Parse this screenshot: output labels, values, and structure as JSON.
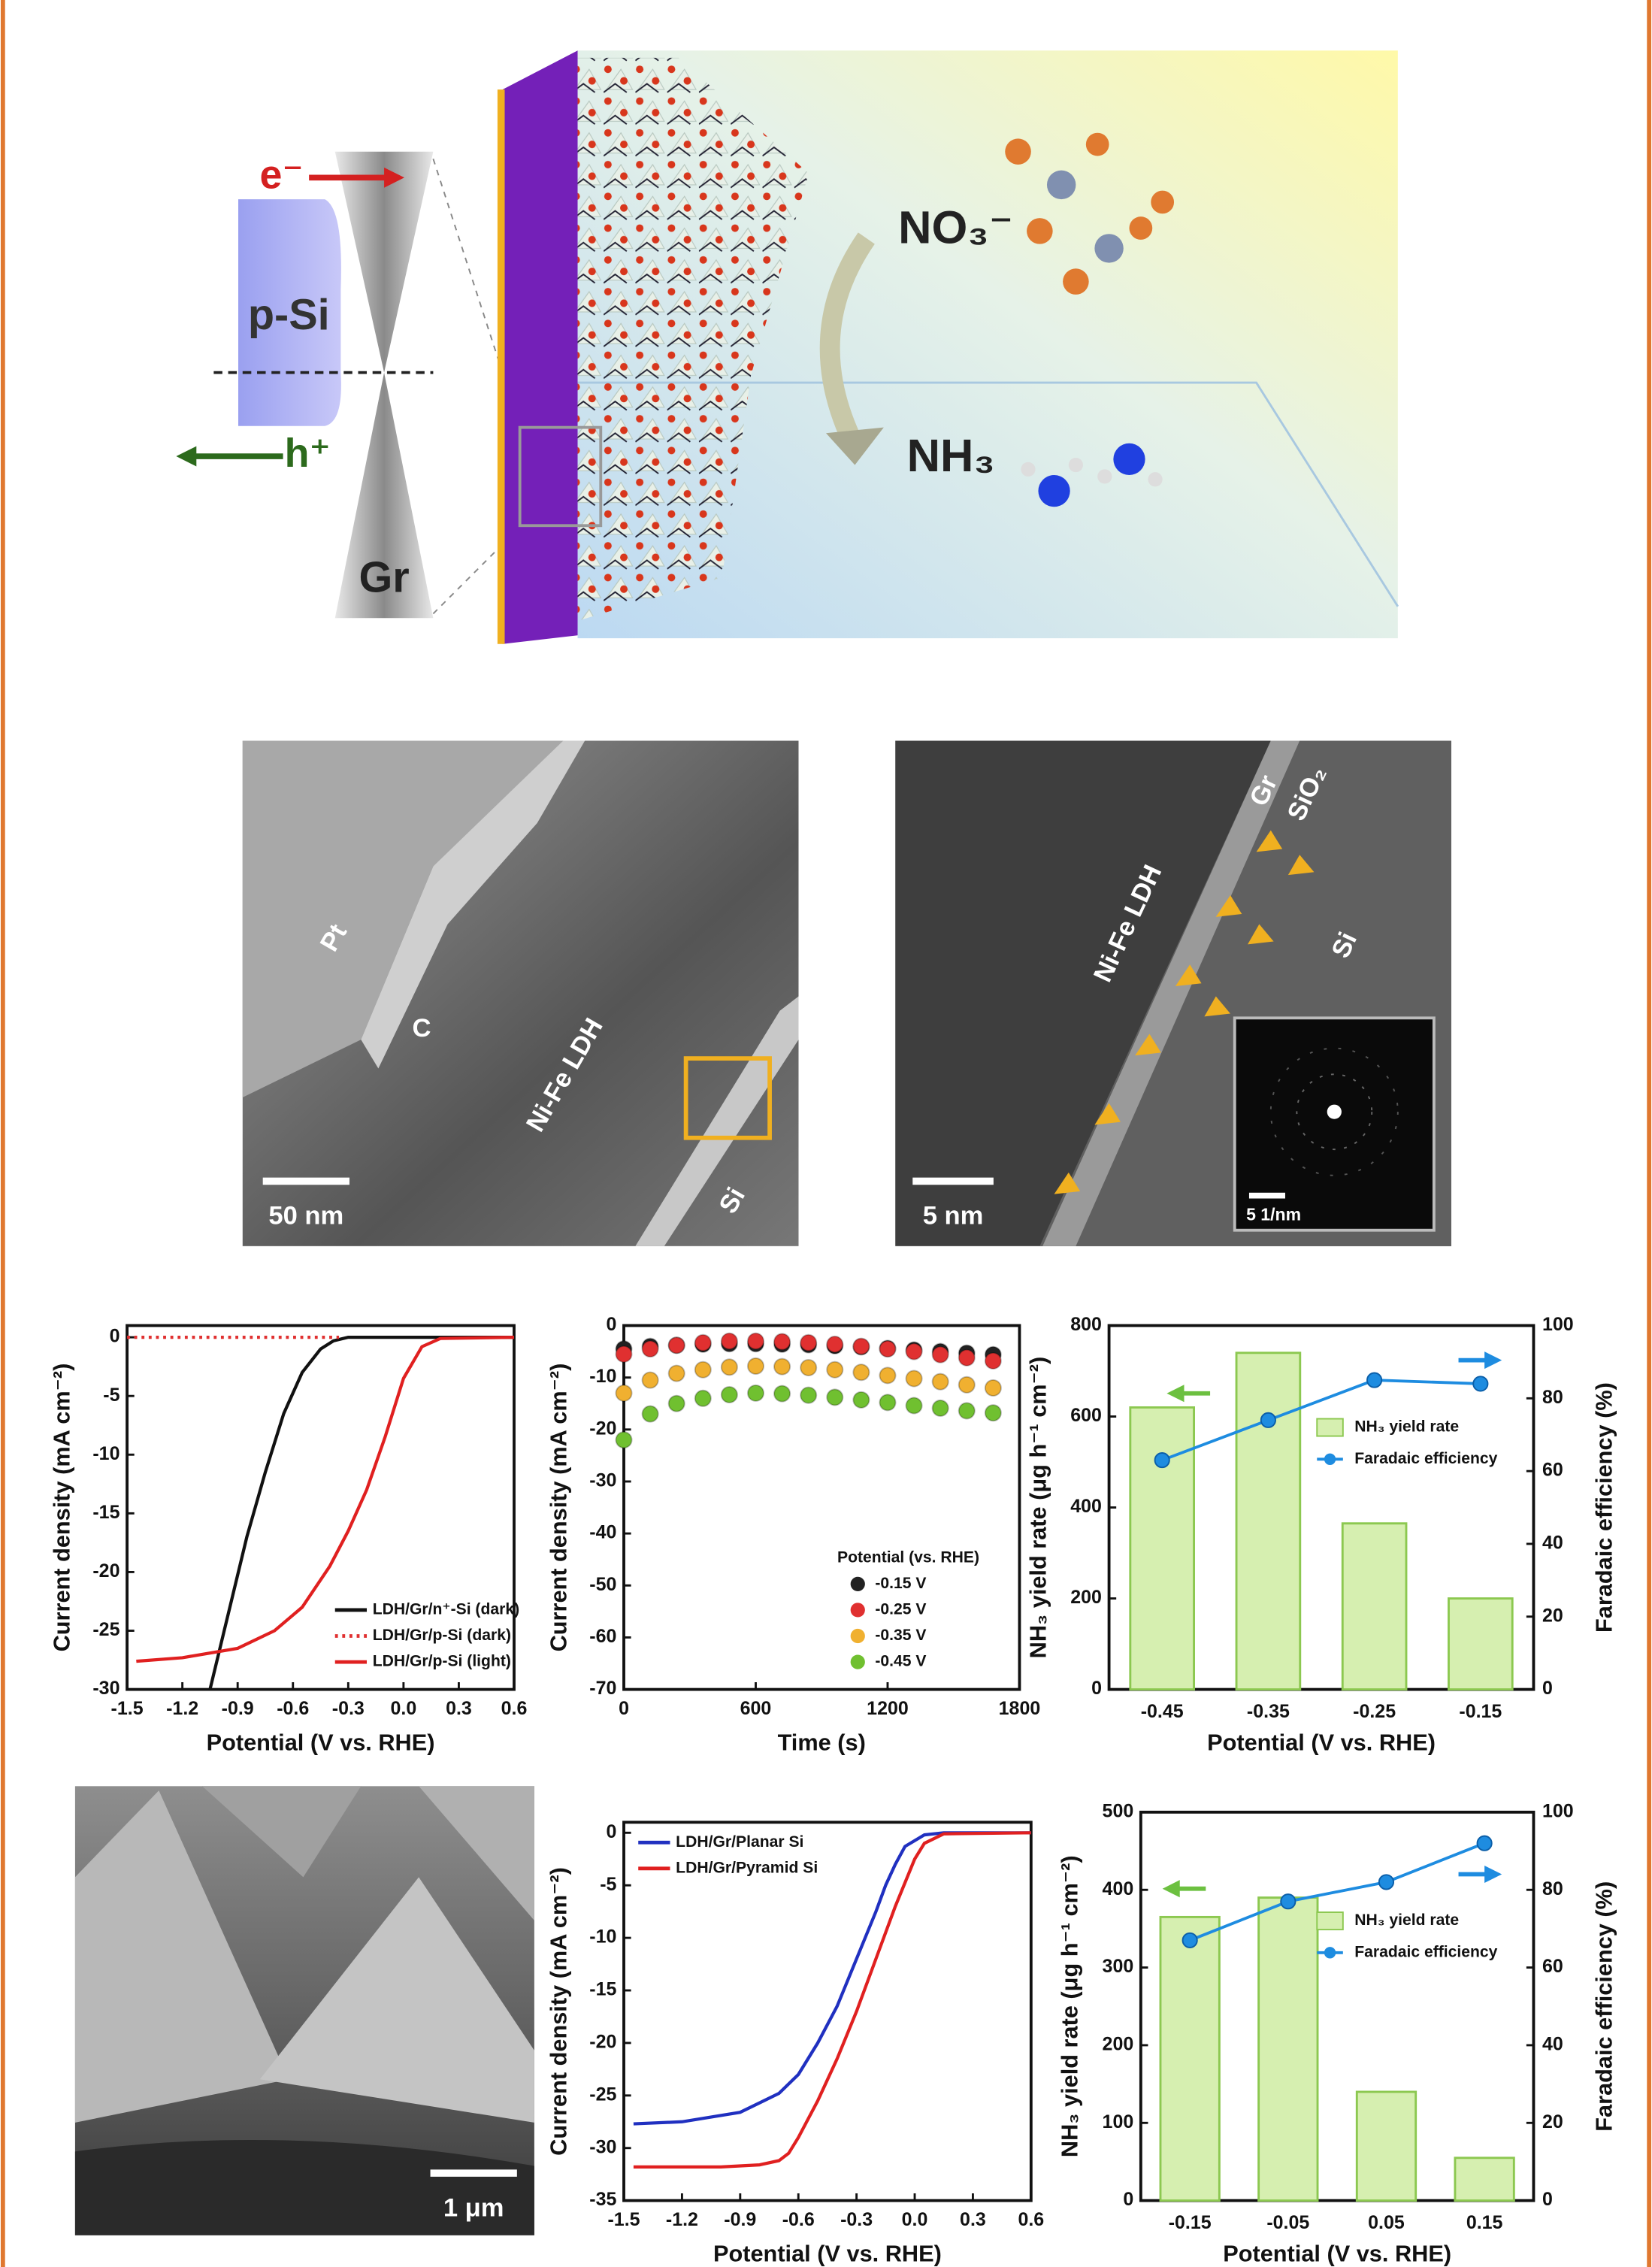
{
  "schematic": {
    "electron": "e⁻",
    "hole": "h⁺",
    "p_si": "p-Si",
    "graphene": "Gr",
    "nitrate": "NO₃⁻",
    "ammonia": "NH₃"
  },
  "tem": {
    "pt": "Pt",
    "carbon": "C",
    "ldh": "Ni-Fe LDH",
    "si": "Si",
    "scale": "50 nm"
  },
  "hrtem": {
    "ldh": "Ni-Fe LDH",
    "gr": "Gr",
    "sio2": "SiO₂",
    "si": "Si",
    "scale": "5 nm",
    "inset_scale": "5 1/nm"
  },
  "sem": {
    "scale": "1 μm"
  },
  "chart_data": [
    {
      "type": "line",
      "xlabel": "Potential (V vs. RHE)",
      "ylabel": "Current density (mA cm⁻²)",
      "xlim": [
        -1.5,
        0.6
      ],
      "xticks": [
        -1.5,
        -1.2,
        -0.9,
        -0.6,
        -0.3,
        {
          "value": 0,
          "label": "0.0"
        },
        0.3,
        0.6
      ],
      "ylim": [
        -30,
        1
      ],
      "yticks": [
        -30,
        -25,
        -20,
        -15,
        -10,
        -5,
        0
      ],
      "legend": "lower right",
      "series": [
        {
          "name": "LDH/Gr/n⁺-Si (dark)",
          "color": "#111111",
          "linestyle": "solid",
          "x": [
            -1.05,
            -0.95,
            -0.85,
            -0.75,
            -0.65,
            -0.55,
            -0.45,
            -0.38,
            -0.3,
            -0.2,
            0.6
          ],
          "values": [
            -30,
            -23.5,
            -17,
            -11.5,
            -6.5,
            -3,
            -1,
            -0.3,
            0,
            0,
            0
          ]
        },
        {
          "name": "LDH/Gr/p-Si (dark)",
          "color": "#e03030",
          "linestyle": "dotted",
          "x": [
            -1.5,
            -0.35
          ],
          "values": [
            0,
            0
          ]
        },
        {
          "name": "LDH/Gr/p-Si (light)",
          "color": "#e02020",
          "linestyle": "solid",
          "x": [
            -1.45,
            -1.2,
            -0.9,
            -0.7,
            -0.55,
            -0.4,
            -0.3,
            -0.2,
            -0.1,
            0,
            0.1,
            0.2,
            0.6
          ],
          "values": [
            -27.6,
            -27.3,
            -26.5,
            -25,
            -23,
            -19.5,
            -16.5,
            -13,
            -8.5,
            -3.5,
            -0.8,
            -0.1,
            0
          ]
        }
      ]
    },
    {
      "type": "scatter",
      "xlabel": "Time (s)",
      "ylabel": "Current density (mA cm⁻²)",
      "xlim": [
        0,
        1800
      ],
      "xticks": [
        0,
        600,
        1200,
        1800
      ],
      "ylim": [
        -70,
        0
      ],
      "yticks": [
        -70,
        -60,
        -50,
        -40,
        -30,
        -20,
        -10,
        0
      ],
      "legend": "lower right",
      "legend_title": "Potential (vs. RHE)",
      "series": [
        {
          "name": "-0.15 V",
          "color": "#222222",
          "x": [
            0,
            120,
            240,
            360,
            480,
            600,
            720,
            840,
            960,
            1080,
            1200,
            1320,
            1440,
            1560,
            1680
          ],
          "values": [
            -4.5,
            -4,
            -3.8,
            -3.6,
            -3.5,
            -3.5,
            -3.6,
            -3.7,
            -3.9,
            -4.1,
            -4.4,
            -4.7,
            -5,
            -5.3,
            -5.6
          ]
        },
        {
          "name": "-0.25 V",
          "color": "#e03030",
          "x": [
            0,
            120,
            240,
            360,
            480,
            600,
            720,
            840,
            960,
            1080,
            1200,
            1320,
            1440,
            1560,
            1680
          ],
          "values": [
            -5.5,
            -4.5,
            -3.8,
            -3.3,
            -3,
            -3,
            -3.1,
            -3.3,
            -3.6,
            -4,
            -4.5,
            -5,
            -5.6,
            -6.2,
            -6.8
          ]
        },
        {
          "name": "-0.35 V",
          "color": "#f0b030",
          "x": [
            0,
            120,
            240,
            360,
            480,
            600,
            720,
            840,
            960,
            1080,
            1200,
            1320,
            1440,
            1560,
            1680
          ],
          "values": [
            -13,
            -10.5,
            -9.2,
            -8.5,
            -8,
            -7.8,
            -7.9,
            -8.1,
            -8.5,
            -9,
            -9.6,
            -10.2,
            -10.8,
            -11.4,
            -12
          ]
        },
        {
          "name": "-0.45 V",
          "color": "#70c030",
          "x": [
            0,
            120,
            240,
            360,
            480,
            600,
            720,
            840,
            960,
            1080,
            1200,
            1320,
            1440,
            1560,
            1680
          ],
          "values": [
            -22,
            -17,
            -15,
            -14,
            -13.3,
            -13,
            -13.1,
            -13.4,
            -13.8,
            -14.3,
            -14.8,
            -15.4,
            -15.9,
            -16.4,
            -16.8
          ]
        }
      ]
    },
    {
      "type": "bar",
      "xlabel": "Potential (V vs. RHE)",
      "ylabel": "NH₃ yield rate (μg h⁻¹ cm⁻²)",
      "y2label": "Faradaic efficiency (%)",
      "categories": [
        "-0.45",
        "-0.35",
        "-0.25",
        "-0.15"
      ],
      "ylim": [
        0,
        800
      ],
      "yticks": [
        0,
        200,
        400,
        600,
        800
      ],
      "y2lim": [
        0,
        100
      ],
      "y2ticks": [
        0,
        20,
        40,
        60,
        80,
        100
      ],
      "legend": "center right",
      "series": [
        {
          "name": "NH₃ yield rate",
          "color": "#d6efb0",
          "values": [
            620,
            740,
            365,
            200
          ]
        },
        {
          "name": "Faradaic efficiency",
          "color": "#1e8ce0",
          "axis": "y2",
          "values": [
            63,
            74,
            85,
            84
          ]
        }
      ]
    },
    {
      "type": "line",
      "xlabel": "Potential (V vs. RHE)",
      "ylabel": "Current density (mA cm⁻²)",
      "xlim": [
        -1.5,
        0.6
      ],
      "xticks": [
        -1.5,
        -1.2,
        -0.9,
        -0.6,
        -0.3,
        {
          "value": 0,
          "label": "0.0"
        },
        0.3,
        0.6
      ],
      "ylim": [
        -35,
        1
      ],
      "yticks": [
        -35,
        -30,
        -25,
        -20,
        -15,
        -10,
        -5,
        0
      ],
      "legend": "upper left",
      "series": [
        {
          "name": "LDH/Gr/Planar Si",
          "color": "#2030c0",
          "linestyle": "solid",
          "x": [
            -1.45,
            -1.2,
            -0.9,
            -0.7,
            -0.6,
            -0.5,
            -0.4,
            -0.3,
            -0.2,
            -0.15,
            -0.1,
            -0.05,
            0.05,
            0.15,
            0.6
          ],
          "values": [
            -27.7,
            -27.5,
            -26.6,
            -24.8,
            -23,
            -20,
            -16.5,
            -12,
            -7.5,
            -5,
            -3,
            -1.3,
            -0.2,
            0,
            0
          ]
        },
        {
          "name": "LDH/Gr/Pyramid Si",
          "color": "#e02020",
          "linestyle": "solid",
          "x": [
            -1.45,
            -1.0,
            -0.8,
            -0.7,
            -0.65,
            -0.6,
            -0.5,
            -0.4,
            -0.3,
            -0.2,
            -0.1,
            0,
            0.05,
            0.15,
            0.6
          ],
          "values": [
            -31.8,
            -31.8,
            -31.6,
            -31.2,
            -30.5,
            -29,
            -25.5,
            -21.5,
            -17,
            -12,
            -7,
            -2.5,
            -1,
            -0.1,
            0
          ]
        }
      ]
    },
    {
      "type": "bar",
      "xlabel": "Potential (V vs. RHE)",
      "ylabel": "NH₃ yield rate (μg h⁻¹ cm⁻²)",
      "y2label": "Faradaic efficiency (%)",
      "categories": [
        "-0.15",
        "-0.05",
        "0.05",
        "0.15"
      ],
      "ylim": [
        0,
        500
      ],
      "yticks": [
        0,
        100,
        200,
        300,
        400,
        500
      ],
      "y2lim": [
        0,
        100
      ],
      "y2ticks": [
        0,
        20,
        40,
        60,
        80,
        100
      ],
      "legend": "center right",
      "series": [
        {
          "name": "NH₃ yield rate",
          "color": "#d6efb0",
          "values": [
            365,
            390,
            140,
            55
          ]
        },
        {
          "name": "Faradaic efficiency",
          "color": "#1e8ce0",
          "axis": "y2",
          "values": [
            67,
            77,
            82,
            92
          ]
        }
      ]
    }
  ]
}
